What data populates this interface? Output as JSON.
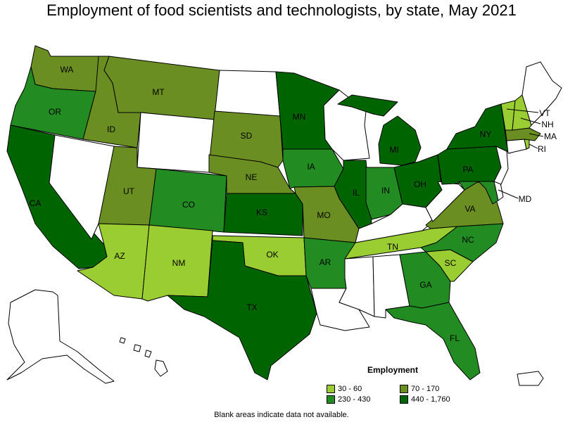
{
  "title": "Employment of food scientists and technologists, by state, May 2021",
  "footnote": "Blank areas indicate data not available.",
  "legend": {
    "title": "Employment",
    "items": [
      {
        "label": "30 - 60",
        "color": "#9acd32"
      },
      {
        "label": "70 - 170",
        "color": "#6b8e23"
      },
      {
        "label": "230 - 430",
        "color": "#228b22"
      },
      {
        "label": "440 - 1,760",
        "color": "#006400"
      }
    ]
  },
  "states": {
    "WA": {
      "label": "WA",
      "class": 1
    },
    "OR": {
      "label": "OR",
      "class": 2
    },
    "CA": {
      "label": "CA",
      "class": 3
    },
    "ID": {
      "label": "ID",
      "class": 1
    },
    "MT": {
      "label": "MT",
      "class": 1
    },
    "UT": {
      "label": "UT",
      "class": 1
    },
    "AZ": {
      "label": "AZ",
      "class": 0
    },
    "NM": {
      "label": "NM",
      "class": 0
    },
    "CO": {
      "label": "CO",
      "class": 2
    },
    "SD": {
      "label": "SD",
      "class": 1
    },
    "NE": {
      "label": "NE",
      "class": 1
    },
    "KS": {
      "label": "KS",
      "class": 3
    },
    "OK": {
      "label": "OK",
      "class": 0
    },
    "TX": {
      "label": "TX",
      "class": 3
    },
    "MN": {
      "label": "MN",
      "class": 3
    },
    "IA": {
      "label": "IA",
      "class": 2
    },
    "MO": {
      "label": "MO",
      "class": 1
    },
    "AR": {
      "label": "AR",
      "class": 2
    },
    "IL": {
      "label": "IL",
      "class": 3
    },
    "IN": {
      "label": "IN",
      "class": 2
    },
    "MI": {
      "label": "MI",
      "class": 3
    },
    "OH": {
      "label": "OH",
      "class": 3
    },
    "TN": {
      "label": "TN",
      "class": 0
    },
    "GA": {
      "label": "GA",
      "class": 2
    },
    "FL": {
      "label": "FL",
      "class": 2
    },
    "SC": {
      "label": "SC",
      "class": 0
    },
    "NC": {
      "label": "NC",
      "class": 2
    },
    "VA": {
      "label": "VA",
      "class": 1
    },
    "MD": {
      "label": "MD",
      "class": 2
    },
    "PA": {
      "label": "PA",
      "class": 3
    },
    "NY": {
      "label": "NY",
      "class": 3
    },
    "VT": {
      "label": "VT",
      "class": 0
    },
    "NH": {
      "label": "NH",
      "class": 0
    },
    "MA": {
      "label": "MA",
      "class": 1
    },
    "RI": {
      "label": "RI",
      "class": 0
    },
    "NV": {
      "label": "",
      "class": -1
    },
    "WY": {
      "label": "",
      "class": -1
    },
    "ND": {
      "label": "",
      "class": -1
    },
    "WI": {
      "label": "",
      "class": -1
    },
    "KY": {
      "label": "",
      "class": -1
    },
    "WV": {
      "label": "",
      "class": -1
    },
    "MS": {
      "label": "",
      "class": -1
    },
    "AL": {
      "label": "",
      "class": -1
    },
    "LA": {
      "label": "",
      "class": -1
    },
    "ME": {
      "label": "",
      "class": -1
    },
    "CT": {
      "label": "",
      "class": -1
    },
    "NJ": {
      "label": "",
      "class": -1
    },
    "DE": {
      "label": "",
      "class": -1
    },
    "AK": {
      "label": "",
      "class": -1
    },
    "HI": {
      "label": "",
      "class": -1
    },
    "PR": {
      "label": "",
      "class": -1
    }
  }
}
